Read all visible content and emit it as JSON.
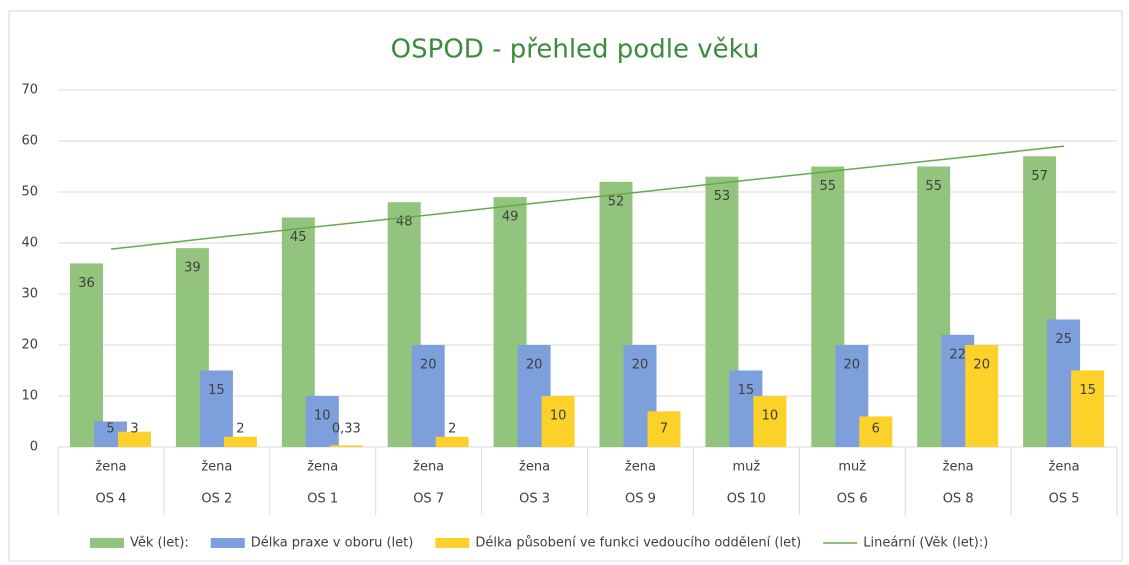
{
  "chart_data": {
    "type": "bar",
    "title": "OSPOD - přehled podle věku",
    "categories": [
      "OS 4",
      "OS 2",
      "OS 1",
      "OS 7",
      "OS 3",
      "OS 9",
      "OS 10",
      "OS 6",
      "OS 8",
      "OS 5"
    ],
    "groups": [
      "žena",
      "žena",
      "žena",
      "žena",
      "žena",
      "žena",
      "muž",
      "muž",
      "žena",
      "žena"
    ],
    "series": [
      {
        "name": "Věk (let):",
        "color": "#93c47d",
        "values": [
          36,
          39,
          45,
          48,
          49,
          52,
          53,
          55,
          55,
          57
        ]
      },
      {
        "name": "Délka praxe v oboru (let)",
        "color": "#7d9fdb",
        "values": [
          5,
          15,
          10,
          20,
          20,
          20,
          15,
          20,
          22,
          25
        ]
      },
      {
        "name": "Délka působení ve funkci vedoucího oddělení (let)",
        "color": "#fcd12a",
        "values": [
          3,
          2,
          0.33,
          2,
          10,
          7,
          10,
          6,
          20,
          15
        ],
        "value_labels": [
          "3",
          "2",
          "0,33",
          "2",
          "10",
          "7",
          "10",
          "6",
          "20",
          "15"
        ]
      },
      {
        "name": "Lineární (Věk (let):)",
        "color": "#6aa84f",
        "type": "line",
        "values": [
          38.8,
          41.1,
          43.3,
          45.5,
          47.8,
          50.0,
          52.3,
          54.5,
          56.7,
          59.0
        ]
      }
    ],
    "ylim": [
      0,
      70
    ],
    "yticks": [
      0,
      10,
      20,
      30,
      40,
      50,
      60,
      70
    ],
    "grid": true,
    "legend": "bottom"
  }
}
